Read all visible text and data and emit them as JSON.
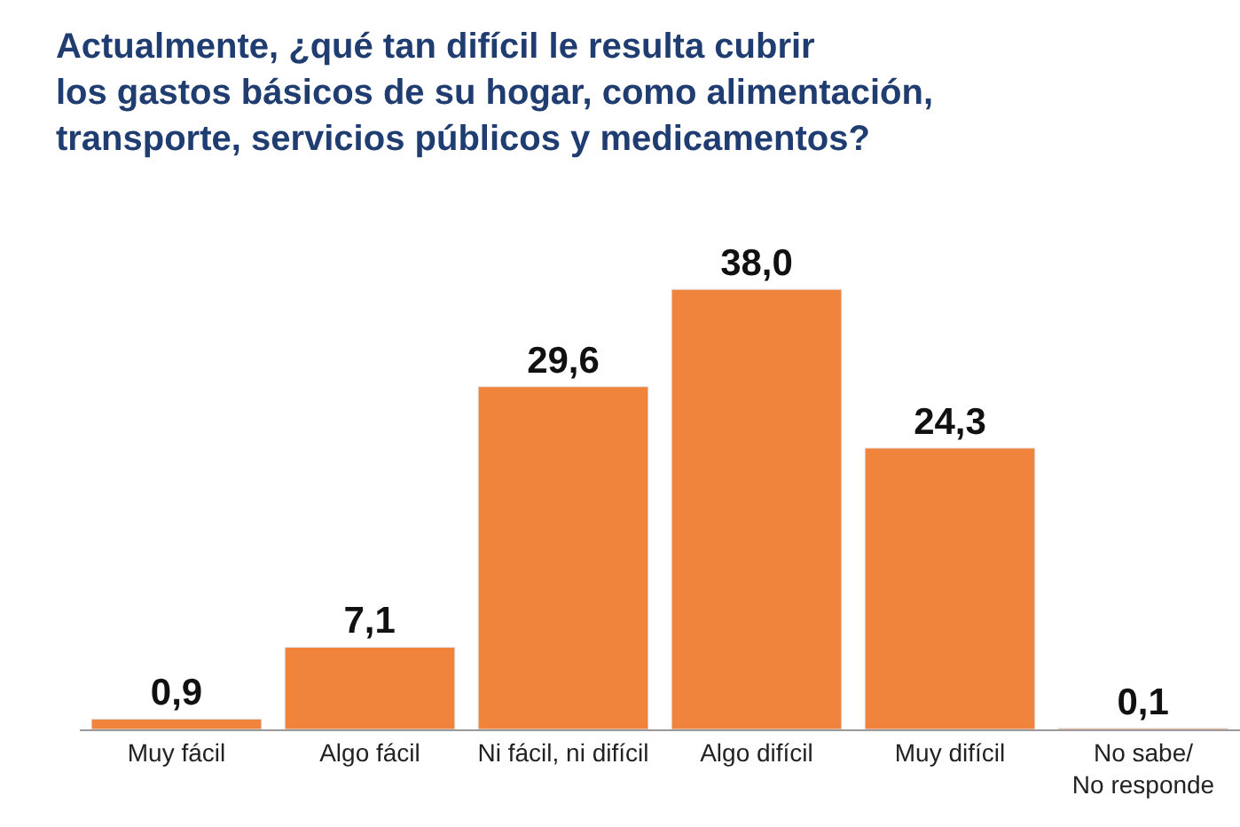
{
  "chart_data": {
    "type": "bar",
    "title": "Actualmente, ¿qué tan difícil le resulta cubrir\nlos gastos básicos de su hogar, como alimentación,\ntransporte, servicios públicos y medicamentos?",
    "categories": [
      "Muy fácil",
      "Algo fácil",
      "Ni fácil, ni difícil",
      "Algo difícil",
      "Muy difícil",
      "No sabe/\nNo responde"
    ],
    "values": [
      0.9,
      7.1,
      29.6,
      38.0,
      24.3,
      0.1
    ],
    "value_labels": [
      "0,9",
      "7,1",
      "29,6",
      "38,0",
      "24,3",
      "0,1"
    ],
    "color": "#f0843c"
  }
}
